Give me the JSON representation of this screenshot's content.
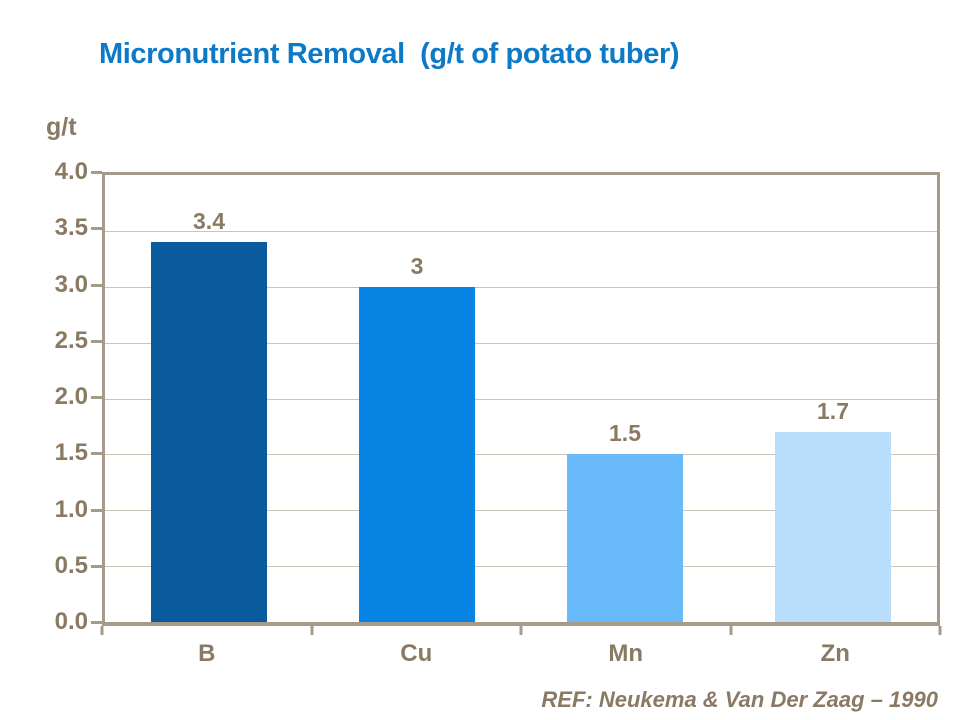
{
  "title": "Micronutrient Removal  (g/t of potato tuber)",
  "footer": "REF: Neukema & Van Der Zaag – 1990",
  "colors": {
    "title_blue": "#0d7ac8",
    "axis_line": "#a69a8a",
    "gridline": "#ccc4b8",
    "label_taupe": "#8a7a64"
  },
  "chart_data": {
    "type": "bar",
    "title": "Micronutrient Removal (g/t of potato tuber)",
    "categories": [
      "B",
      "Cu",
      "Mn",
      "Zn"
    ],
    "values": [
      3.4,
      3,
      1.5,
      1.7
    ],
    "value_labels": [
      "3.4",
      "3",
      "1.5",
      "1.7"
    ],
    "bar_colors": [
      "#0a5a9e",
      "#0884e4",
      "#68baf8",
      "#b9defb"
    ],
    "xlabel": "",
    "ylabel": "g/t",
    "ylim": [
      0,
      4
    ],
    "ytick_step": 0.5,
    "yticks": [
      "4.0",
      "3.5",
      "3.0",
      "2.5",
      "2.0",
      "1.5",
      "1.0",
      "0.5",
      "0.0"
    ],
    "grid": true,
    "legend": "none",
    "footer": "REF: Neukema & Van Der Zaag – 1990"
  }
}
